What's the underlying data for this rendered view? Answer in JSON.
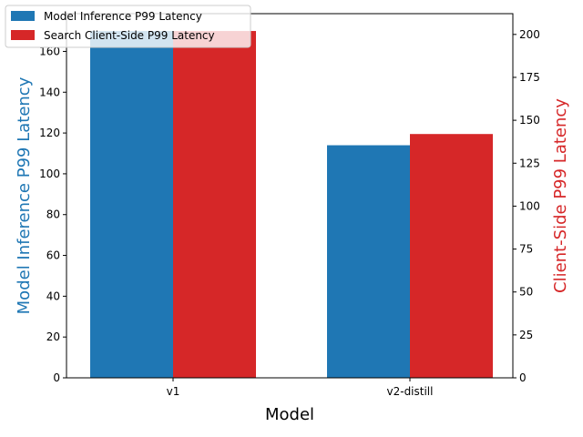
{
  "chart_data": {
    "type": "bar",
    "xlabel": "Model",
    "categories": [
      "v1",
      "v2-distill"
    ],
    "series": [
      {
        "name": "Model Inference P99 Latency",
        "color": "#1f77b4",
        "axis": "left",
        "values": [
          170,
          114
        ]
      },
      {
        "name": "Search Client-Side P99 Latency",
        "color": "#d62728",
        "axis": "right",
        "values": [
          202,
          142
        ]
      }
    ],
    "y_left": {
      "label": "Model Inference P99 Latency",
      "color": "#1f77b4",
      "ylim": [
        0,
        178.5
      ],
      "ticks": [
        0,
        20,
        40,
        60,
        80,
        100,
        120,
        140,
        160
      ]
    },
    "y_right": {
      "label": "Client-Side P99 Latency",
      "color": "#d62728",
      "ylim": [
        0,
        212.1
      ],
      "ticks": [
        0,
        25,
        50,
        75,
        100,
        125,
        150,
        175,
        200
      ]
    },
    "legend_position": "top-left",
    "grid": false
  }
}
